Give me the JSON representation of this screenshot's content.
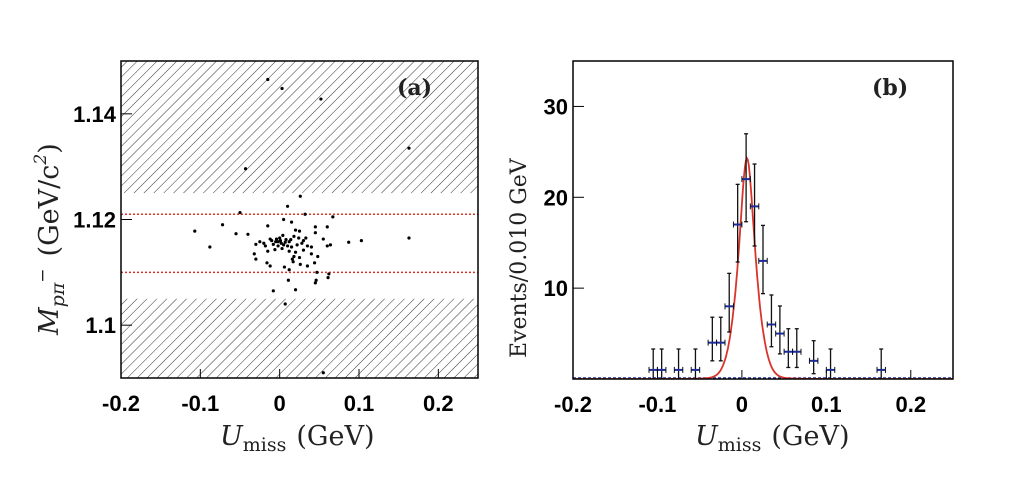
{
  "chart_data": [
    {
      "id": "a",
      "type": "scatter",
      "panel_label": "(a)",
      "xlabel": "U_miss (GeV)",
      "xlabel_main": "U",
      "xlabel_sub": "miss",
      "xlabel_unit": "(GeV)",
      "ylabel": "M_{pπ−} (GeV/c²)",
      "ylabel_main": "M",
      "ylabel_sub": "pπ",
      "ylabel_sup": "−",
      "ylabel_unit": "(GeV/c",
      "ylabel_unit_sup": "2",
      "ylabel_unit_close": ")",
      "xlim": [
        -0.2,
        0.25
      ],
      "ylim": [
        1.09,
        1.15
      ],
      "xticks": [
        -0.2,
        -0.1,
        0,
        0.1,
        0.2
      ],
      "xtick_labels": [
        "-0.2",
        "-0.1",
        "0",
        "0.1",
        "0.2"
      ],
      "yticks": [
        1.1,
        1.12,
        1.14
      ],
      "ytick_labels": [
        "1.1",
        "1.12",
        "1.14"
      ],
      "hatched_regions": [
        [
          1.125,
          1.15
        ],
        [
          1.09,
          1.105
        ]
      ],
      "signal_window_lines": [
        1.121,
        1.11
      ],
      "signal_line_color": "#d9342b",
      "marker_color": "#000000",
      "points": [
        [
          -0.015,
          1.1465
        ],
        [
          0.003,
          1.1448
        ],
        [
          0.052,
          1.1428
        ],
        [
          0.163,
          1.1335
        ],
        [
          -0.043,
          1.1296
        ],
        [
          0.026,
          1.1244
        ],
        [
          0.01,
          1.1225
        ],
        [
          -0.05,
          1.1213
        ],
        [
          0.032,
          1.121
        ],
        [
          0.067,
          1.1205
        ],
        [
          0.005,
          1.12
        ],
        [
          0.015,
          1.1195
        ],
        [
          -0.072,
          1.119
        ],
        [
          -0.015,
          1.1188
        ],
        [
          0.045,
          1.1186
        ],
        [
          0.06,
          1.1186
        ],
        [
          -0.107,
          1.1178
        ],
        [
          0.02,
          1.118
        ],
        [
          0.025,
          1.1178
        ],
        [
          0.045,
          1.1175
        ],
        [
          -0.055,
          1.1173
        ],
        [
          -0.04,
          1.1172
        ],
        [
          0.163,
          1.1165
        ],
        [
          0.103,
          1.116
        ],
        [
          0.087,
          1.1157
        ],
        [
          0.055,
          1.1163
        ],
        [
          0.03,
          1.116
        ],
        [
          0.0,
          1.1165
        ],
        [
          0.008,
          1.1162
        ],
        [
          0.012,
          1.1158
        ],
        [
          0.018,
          1.1168
        ],
        [
          -0.01,
          1.116
        ],
        [
          -0.005,
          1.1158
        ],
        [
          0.002,
          1.1155
        ],
        [
          0.005,
          1.1152
        ],
        [
          -0.002,
          1.115
        ],
        [
          -0.008,
          1.1153
        ],
        [
          0.01,
          1.115
        ],
        [
          0.015,
          1.1148
        ],
        [
          0.022,
          1.1152
        ],
        [
          0.028,
          1.1155
        ],
        [
          0.035,
          1.115
        ],
        [
          0.04,
          1.1148
        ],
        [
          -0.02,
          1.1155
        ],
        [
          -0.025,
          1.1158
        ],
        [
          -0.03,
          1.1153
        ],
        [
          0.06,
          1.115
        ],
        [
          0.064,
          1.1152
        ],
        [
          -0.088,
          1.1148
        ],
        [
          0.003,
          1.1145
        ],
        [
          -0.006,
          1.1143
        ],
        [
          0.012,
          1.114
        ],
        [
          0.02,
          1.1138
        ],
        [
          0.03,
          1.1142
        ],
        [
          -0.015,
          1.114
        ],
        [
          -0.032,
          1.1135
        ],
        [
          0.04,
          1.1135
        ],
        [
          0.018,
          1.113
        ],
        [
          0.016,
          1.1125
        ],
        [
          0.025,
          1.1128
        ],
        [
          -0.03,
          1.1125
        ],
        [
          0.048,
          1.113
        ],
        [
          0.017,
          1.112
        ],
        [
          -0.016,
          1.1118
        ],
        [
          0.026,
          1.1115
        ],
        [
          0.044,
          1.1118
        ],
        [
          -0.012,
          1.1112
        ],
        [
          0.006,
          1.111
        ],
        [
          0.012,
          1.1105
        ],
        [
          0.035,
          1.1112
        ],
        [
          0.047,
          1.11
        ],
        [
          0.062,
          1.1097
        ],
        [
          0.061,
          1.109
        ],
        [
          0.011,
          1.1085
        ],
        [
          0.046,
          1.1085
        ],
        [
          0.045,
          1.108
        ],
        [
          -0.008,
          1.1065
        ],
        [
          0.02,
          1.1067
        ],
        [
          0.007,
          1.104
        ],
        [
          0.055,
          1.091
        ],
        [
          -0.002,
          1.1158
        ],
        [
          0.001,
          1.116
        ],
        [
          -0.004,
          1.1163
        ],
        [
          0.007,
          1.1157
        ],
        [
          -0.012,
          1.1163
        ],
        [
          0.014,
          1.1162
        ],
        [
          0.024,
          1.1165
        ],
        [
          0.004,
          1.117
        ],
        [
          -0.018,
          1.115
        ],
        [
          0.033,
          1.1165
        ]
      ]
    },
    {
      "id": "b",
      "type": "line",
      "panel_label": "(b)",
      "xlabel": "U_miss (GeV)",
      "xlabel_main": "U",
      "xlabel_sub": "miss",
      "xlabel_unit": "(GeV)",
      "ylabel": "Events/0.010 GeV",
      "xlim": [
        -0.2,
        0.25
      ],
      "ylim": [
        0,
        35
      ],
      "xticks": [
        -0.2,
        -0.1,
        0,
        0.1,
        0.2
      ],
      "xtick_labels": [
        "-0.2",
        "-0.1",
        "0",
        "0.1",
        "0.2"
      ],
      "yticks": [
        10,
        20,
        30
      ],
      "ytick_labels": [
        "10",
        "20",
        "30"
      ],
      "bin_width": 0.01,
      "data_color": "#1c2c9c",
      "error_color": "#111111",
      "fit_color": "#d9342b",
      "background_color": "#1c2c9c",
      "series": [
        {
          "name": "data",
          "x": [
            -0.105,
            -0.095,
            -0.075,
            -0.055,
            -0.035,
            -0.025,
            -0.015,
            -0.005,
            0.005,
            0.015,
            0.025,
            0.035,
            0.045,
            0.055,
            0.065,
            0.085,
            0.105,
            0.165
          ],
          "values": [
            1,
            1,
            1,
            1,
            4,
            4,
            8,
            17,
            22,
            19,
            13,
            6,
            5,
            3,
            3,
            2,
            1,
            1
          ]
        },
        {
          "name": "fit",
          "function": "peak",
          "peak_position": 0.006,
          "peak_height": 24.3,
          "width": 0.013
        },
        {
          "name": "background",
          "values_constant": 0
        }
      ]
    }
  ]
}
